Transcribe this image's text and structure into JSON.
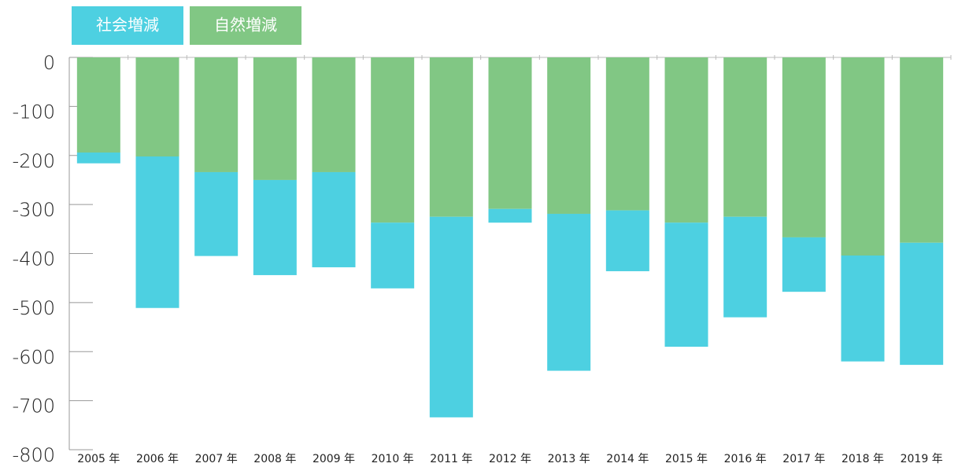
{
  "chart_data": {
    "type": "stacked_bar",
    "categories": [
      "2005 年",
      "2006 年",
      "2007 年",
      "2008 年",
      "2009 年",
      "2010 年",
      "2011 年",
      "2012 年",
      "2013 年",
      "2014 年",
      "2015 年",
      "2016 年",
      "2017 年",
      "2018 年",
      "2019 年"
    ],
    "series": [
      {
        "name": "社会増減",
        "color": "#4dd0e1",
        "values": [
          -22,
          -309,
          -171,
          -194,
          -194,
          -134,
          -409,
          -28,
          -320,
          -124,
          -253,
          -205,
          -111,
          -216,
          -249
        ]
      },
      {
        "name": "自然増減",
        "color": "#81c784",
        "values": [
          -194,
          -202,
          -234,
          -250,
          -234,
          -337,
          -325,
          -309,
          -319,
          -312,
          -337,
          -325,
          -367,
          -404,
          -378
        ]
      }
    ],
    "ylim": [
      -800,
      0
    ],
    "yticks": [
      0,
      -100,
      -200,
      -300,
      -400,
      -500,
      -600,
      -700,
      -800
    ]
  }
}
